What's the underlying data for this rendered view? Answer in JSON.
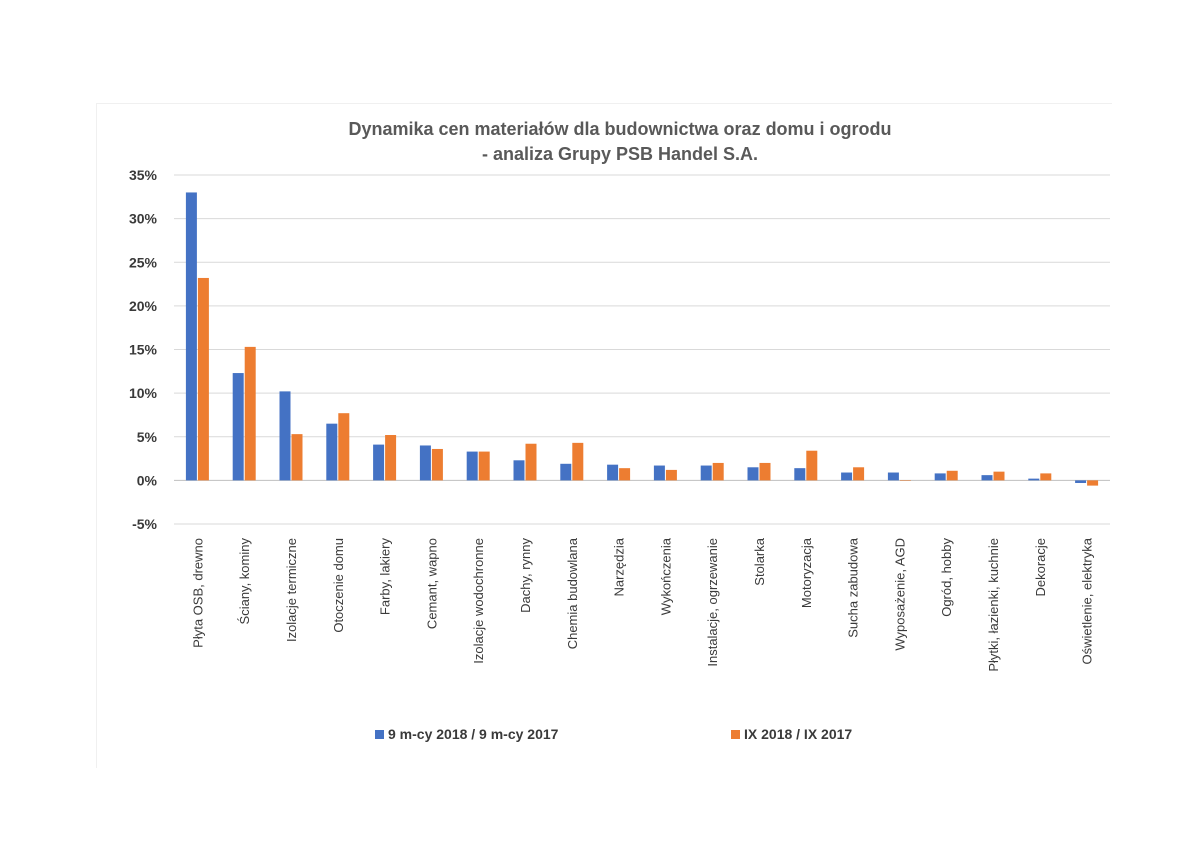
{
  "chart_data": {
    "type": "bar",
    "title_line1": "Dynamika cen materiałów dla budownictwa oraz domu i ogrodu",
    "title_line2": "- analiza Grupy PSB Handel S.A.",
    "ylim": [
      -5,
      35
    ],
    "yticks": [
      "-5%",
      "0%",
      "5%",
      "10%",
      "15%",
      "20%",
      "25%",
      "30%",
      "35%"
    ],
    "ytick_values": [
      -5,
      0,
      5,
      10,
      15,
      20,
      25,
      30,
      35
    ],
    "grid": true,
    "legend_position": "bottom",
    "categories": [
      "Płyta OSB, drewno",
      "Ściany, kominy",
      "Izolacje termiczne",
      "Otoczenie domu",
      "Farby, lakiery",
      "Cemant, wapno",
      "Izolacje wodochronne",
      "Dachy, rynny",
      "Chemia budowlana",
      "Narzędzia",
      "Wykończenia",
      "Instalacje, ogrzewanie",
      "Stolarka",
      "Motoryzacja",
      "Sucha zabudowa",
      "Wyposażenie, AGD",
      "Ogród, hobby",
      "Płytki, łazienki, kuchnie",
      "Dekoracje",
      "Oświetlenie, elektryka"
    ],
    "series": [
      {
        "name": "9 m-cy 2018 / 9 m-cy 2017",
        "color": "#4472C4",
        "values": [
          33.0,
          12.3,
          10.2,
          6.5,
          4.1,
          4.0,
          3.3,
          2.3,
          1.9,
          1.8,
          1.7,
          1.7,
          1.5,
          1.4,
          0.9,
          0.9,
          0.8,
          0.6,
          0.2,
          -0.3
        ]
      },
      {
        "name": "IX 2018 / IX 2017",
        "color": "#ED7D31",
        "values": [
          23.2,
          15.3,
          5.3,
          7.7,
          5.2,
          3.6,
          3.3,
          4.2,
          4.3,
          1.4,
          1.2,
          2.0,
          2.0,
          3.4,
          1.5,
          0.0,
          1.1,
          1.0,
          0.8,
          -0.6
        ]
      }
    ]
  }
}
